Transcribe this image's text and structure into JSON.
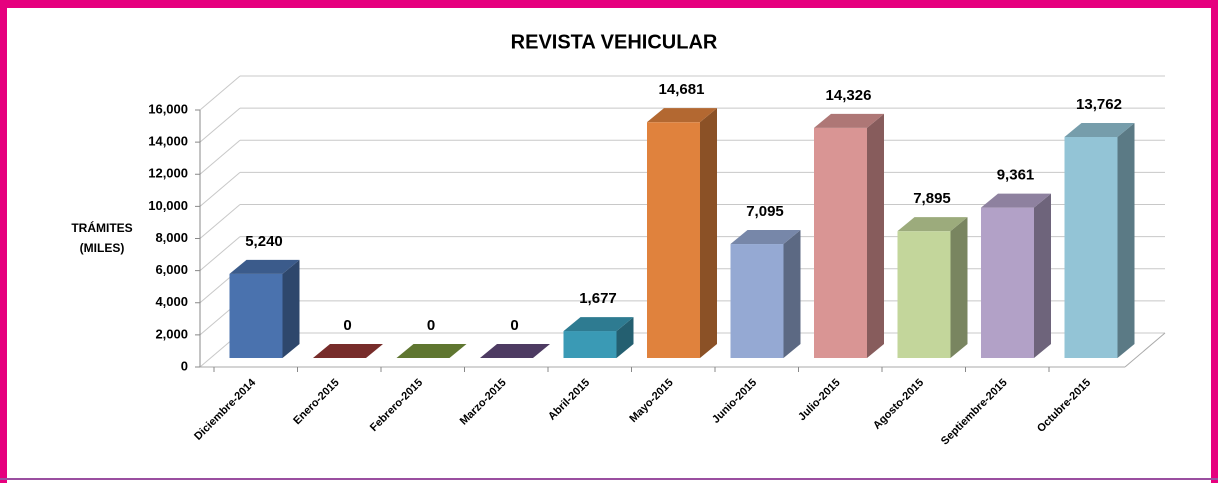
{
  "chart_data": {
    "type": "bar3d",
    "title": "REVISTA VEHICULAR",
    "ylabel": [
      "TRÁMITES",
      "(MILES)"
    ],
    "categories": [
      "Diciembre-2014",
      "Enero-2015",
      "Febrero-2015",
      "Marzo-2015",
      "Abril-2015",
      "Mayo-2015",
      "Junio-2015",
      "Julio-2015",
      "Agosto-2015",
      "Septiembre-2015",
      "Octubre-2015"
    ],
    "values": [
      5240,
      0,
      0,
      0,
      1677,
      14681,
      7095,
      14326,
      7895,
      9361,
      13762
    ],
    "value_labels": [
      "5,240",
      "0",
      "0",
      "0",
      "1,677",
      "14,681",
      "7,095",
      "14,326",
      "7,895",
      "9,361",
      "13,762"
    ],
    "colors": [
      "#4a72ae",
      "#953735",
      "#77933c",
      "#604a7b",
      "#3a9ab5",
      "#e0823d",
      "#95a9d3",
      "#d99594",
      "#c3d69b",
      "#b2a1c7",
      "#93c4d6"
    ],
    "ylim": [
      0,
      16000
    ],
    "yticks": [
      0,
      {
        "value": 2000,
        "label": "2,000"
      },
      {
        "value": 4000,
        "label": "4,000"
      },
      {
        "value": 6000,
        "label": "6,000"
      },
      {
        "value": 8000,
        "label": "8,000"
      },
      {
        "value": 10000,
        "label": "10,000"
      },
      {
        "value": 12000,
        "label": "12,000"
      },
      {
        "value": 14000,
        "label": "14,000"
      },
      {
        "value": 16000,
        "label": "16,000"
      }
    ],
    "grid": true
  }
}
